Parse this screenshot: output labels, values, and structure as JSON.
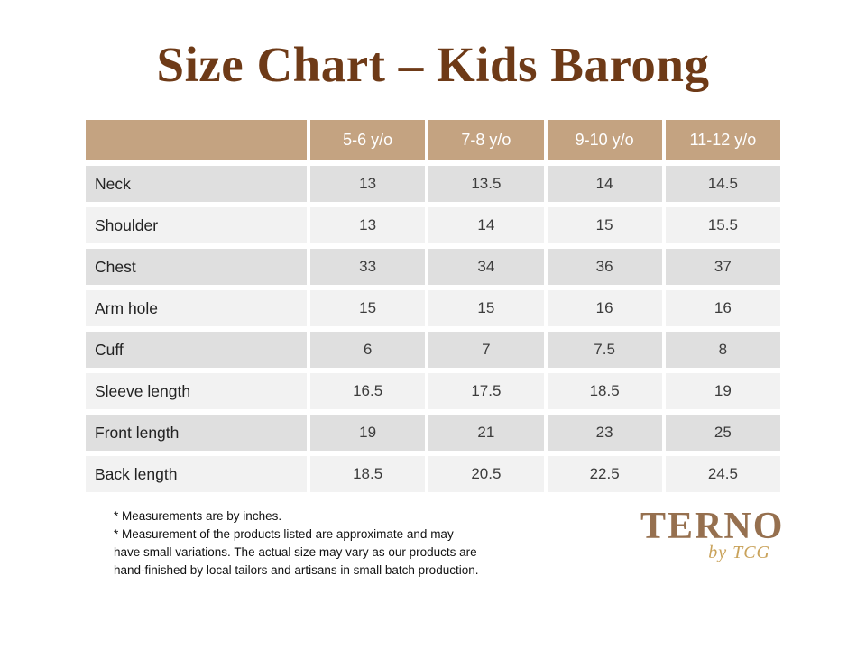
{
  "chart_data": {
    "type": "table",
    "title": "Size Chart – Kids Barong",
    "columns": [
      "",
      "5-6 y/o",
      "7-8 y/o",
      "9-10 y/o",
      "11-12 y/o"
    ],
    "rows": [
      {
        "label": "Neck",
        "values": [
          "13",
          "13.5",
          "14",
          "14.5"
        ]
      },
      {
        "label": "Shoulder",
        "values": [
          "13",
          "14",
          "15",
          "15.5"
        ]
      },
      {
        "label": "Chest",
        "values": [
          "33",
          "34",
          "36",
          "37"
        ]
      },
      {
        "label": "Arm hole",
        "values": [
          "15",
          "15",
          "16",
          "16"
        ]
      },
      {
        "label": "Cuff",
        "values": [
          "6",
          "7",
          "7.5",
          "8"
        ]
      },
      {
        "label": "Sleeve length",
        "values": [
          "16.5",
          "17.5",
          "18.5",
          "19"
        ]
      },
      {
        "label": "Front length",
        "values": [
          "19",
          "21",
          "23",
          "25"
        ]
      },
      {
        "label": "Back length",
        "values": [
          "18.5",
          "20.5",
          "22.5",
          "24.5"
        ]
      }
    ],
    "units": "inches",
    "layout": {
      "striped": true,
      "legend": "none",
      "grid": "off"
    }
  },
  "notes": {
    "lines": [
      "* Measurements are by inches.",
      "* Measurement of the products listed are approximate and may",
      "have small variations. The actual size may vary as our products are",
      "hand-finished by local tailors and artisans in small batch production."
    ]
  },
  "logo": {
    "brand": "TERNO",
    "tagline": "by TCG"
  },
  "colors": {
    "background": "#ffffff",
    "title_brown": "#6e3a17",
    "header_tan": "#c4a381",
    "header_text": "#ffffff",
    "row_dark": "#dfdfdf",
    "row_light": "#f2f2f2",
    "logo_brown": "#96704f",
    "tagline_gold": "#c9a25a"
  }
}
